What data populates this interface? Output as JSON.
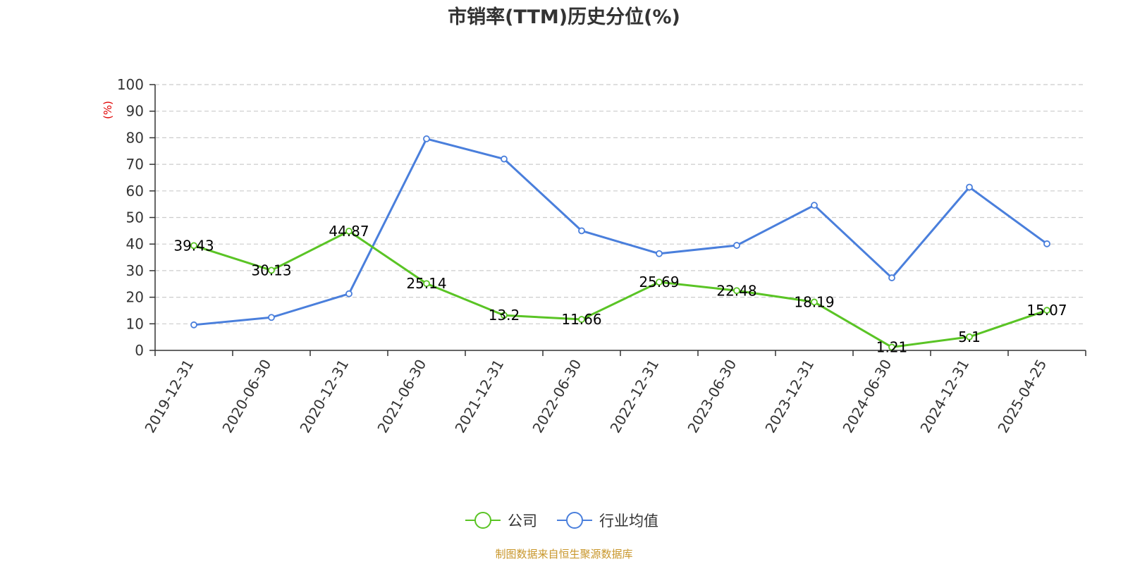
{
  "chart_data": {
    "type": "line",
    "title": "市销率(TTM)历史分位(%)",
    "y_unit": "(%)",
    "categories": [
      "2019-12-31",
      "2020-06-30",
      "2020-12-31",
      "2021-06-30",
      "2021-12-31",
      "2022-06-30",
      "2022-12-31",
      "2023-06-30",
      "2023-12-31",
      "2024-06-30",
      "2024-12-31",
      "2025-04-25"
    ],
    "ylim": [
      0,
      100
    ],
    "y_ticks": [
      0,
      10,
      20,
      30,
      40,
      50,
      60,
      70,
      80,
      90,
      100
    ],
    "grid": true,
    "legend_position": "bottom-center",
    "series": [
      {
        "name": "公司",
        "color": "#5ac425",
        "values": [
          39.43,
          30.13,
          44.87,
          25.14,
          13.2,
          11.66,
          25.69,
          22.48,
          18.19,
          1.21,
          5.1,
          15.07
        ],
        "labels": [
          "39.43",
          "30.13",
          "44.87",
          "25.14",
          "13.2",
          "11.66",
          "25.69",
          "22.48",
          "18.19",
          "1.21",
          "5.1",
          "15.07"
        ]
      },
      {
        "name": "行业均值",
        "color": "#4a7fdc",
        "values": [
          9.6,
          12.4,
          21.3,
          79.6,
          72.0,
          45.0,
          36.4,
          39.5,
          54.6,
          27.3,
          61.4,
          40.1
        ]
      }
    ]
  },
  "source_note": "制图数据来自恒生聚源数据库"
}
